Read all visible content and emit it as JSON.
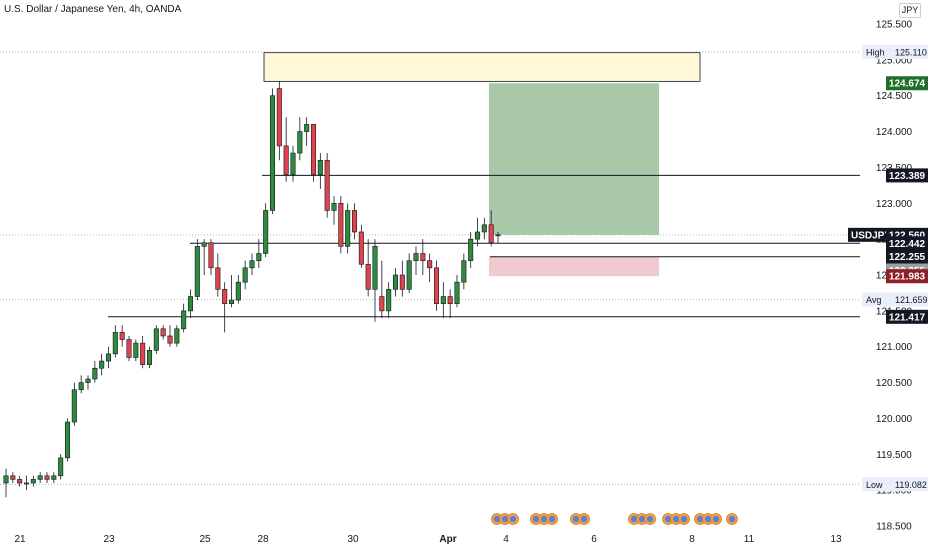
{
  "header": {
    "title": "U.S. Dollar / Japanese Yen, 4h, OANDA",
    "currency": "JPY"
  },
  "colors": {
    "up": "#2e8b3e",
    "down": "#e0434b",
    "supply_zone": "#fff8d6",
    "target_zone": "#a9c8a9",
    "stop_zone": "#efcbd0"
  },
  "chart_data": {
    "type": "candlestick",
    "title": "U.S. Dollar / Japanese Yen, 4h, OANDA",
    "symbol": "USDJPY",
    "ylim": [
      118.5,
      125.5
    ],
    "y_ticks": [
      "118.500",
      "119.000",
      "119.500",
      "120.000",
      "120.500",
      "121.000",
      "121.500",
      "122.000",
      "122.500",
      "123.000",
      "123.500",
      "124.000",
      "124.500",
      "125.000",
      "125.500"
    ],
    "x_ticks": [
      "21",
      "23",
      "25",
      "28",
      "30",
      "Apr",
      "4",
      "6",
      "8",
      "11",
      "13"
    ],
    "candles": [
      [
        119.1,
        119.3,
        118.9,
        119.2
      ],
      [
        119.2,
        119.25,
        119.1,
        119.15
      ],
      [
        119.15,
        119.2,
        119.05,
        119.1
      ],
      [
        119.1,
        119.2,
        119.0,
        119.1
      ],
      [
        119.1,
        119.2,
        119.05,
        119.15
      ],
      [
        119.15,
        119.25,
        119.1,
        119.2
      ],
      [
        119.2,
        119.25,
        119.1,
        119.15
      ],
      [
        119.15,
        119.25,
        119.1,
        119.2
      ],
      [
        119.2,
        119.5,
        119.15,
        119.45
      ],
      [
        119.45,
        120.0,
        119.4,
        119.95
      ],
      [
        119.95,
        120.5,
        119.9,
        120.4
      ],
      [
        120.4,
        120.6,
        120.35,
        120.5
      ],
      [
        120.5,
        120.6,
        120.4,
        120.55
      ],
      [
        120.55,
        120.8,
        120.5,
        120.7
      ],
      [
        120.7,
        120.9,
        120.6,
        120.8
      ],
      [
        120.8,
        121.0,
        120.7,
        120.9
      ],
      [
        120.9,
        121.3,
        120.85,
        121.2
      ],
      [
        121.2,
        121.3,
        121.0,
        121.1
      ],
      [
        121.1,
        121.15,
        120.8,
        120.85
      ],
      [
        120.85,
        121.1,
        120.8,
        121.05
      ],
      [
        121.05,
        121.15,
        120.7,
        120.75
      ],
      [
        120.75,
        121.0,
        120.7,
        120.95
      ],
      [
        120.95,
        121.3,
        120.9,
        121.25
      ],
      [
        121.25,
        121.3,
        121.1,
        121.15
      ],
      [
        121.15,
        121.3,
        121.0,
        121.05
      ],
      [
        121.05,
        121.3,
        121.0,
        121.25
      ],
      [
        121.25,
        121.6,
        121.2,
        121.5
      ],
      [
        121.5,
        121.8,
        121.4,
        121.7
      ],
      [
        121.7,
        122.5,
        121.65,
        122.4
      ],
      [
        122.4,
        122.5,
        122.0,
        122.45
      ],
      [
        122.45,
        122.5,
        122.0,
        122.1
      ],
      [
        122.1,
        122.3,
        121.7,
        121.8
      ],
      [
        121.8,
        121.9,
        121.2,
        121.6
      ],
      [
        121.6,
        122.0,
        121.55,
        121.65
      ],
      [
        121.65,
        122.0,
        121.6,
        121.9
      ],
      [
        121.9,
        122.2,
        121.8,
        122.1
      ],
      [
        122.1,
        122.3,
        122.0,
        122.2
      ],
      [
        122.2,
        122.5,
        122.1,
        122.3
      ],
      [
        122.3,
        123.0,
        122.25,
        122.9
      ],
      [
        122.9,
        124.6,
        122.85,
        124.5
      ],
      [
        124.6,
        124.7,
        123.6,
        123.8
      ],
      [
        123.8,
        124.2,
        123.3,
        123.4
      ],
      [
        123.4,
        123.8,
        123.3,
        123.7
      ],
      [
        123.7,
        124.2,
        123.6,
        124.0
      ],
      [
        124.0,
        124.2,
        123.8,
        124.1
      ],
      [
        124.1,
        124.1,
        123.3,
        123.4
      ],
      [
        123.4,
        123.7,
        123.2,
        123.6
      ],
      [
        123.6,
        123.7,
        122.8,
        122.9
      ],
      [
        122.9,
        123.1,
        122.7,
        123.0
      ],
      [
        123.0,
        123.1,
        122.3,
        122.4
      ],
      [
        122.4,
        123.0,
        122.3,
        122.9
      ],
      [
        122.9,
        123.0,
        122.5,
        122.6
      ],
      [
        122.6,
        122.7,
        122.1,
        122.15
      ],
      [
        122.15,
        122.5,
        121.7,
        121.8
      ],
      [
        121.8,
        122.5,
        121.35,
        122.4
      ],
      [
        121.7,
        122.2,
        121.4,
        121.5
      ],
      [
        121.5,
        121.9,
        121.4,
        121.8
      ],
      [
        121.8,
        122.1,
        121.7,
        122.0
      ],
      [
        122.0,
        122.2,
        121.7,
        121.8
      ],
      [
        121.8,
        122.3,
        121.75,
        122.2
      ],
      [
        122.2,
        122.4,
        122.0,
        122.3
      ],
      [
        122.3,
        122.5,
        122.0,
        122.2
      ],
      [
        122.2,
        122.3,
        121.9,
        122.1
      ],
      [
        122.1,
        122.2,
        121.5,
        121.6
      ],
      [
        121.6,
        121.9,
        121.4,
        121.7
      ],
      [
        121.7,
        121.8,
        121.4,
        121.6
      ],
      [
        121.6,
        122.0,
        121.55,
        121.9
      ],
      [
        121.9,
        122.3,
        121.8,
        122.2
      ],
      [
        122.2,
        122.6,
        122.1,
        122.5
      ],
      [
        122.5,
        122.8,
        122.4,
        122.6
      ],
      [
        122.6,
        122.8,
        122.5,
        122.7
      ],
      [
        122.7,
        122.9,
        122.4,
        122.45
      ],
      [
        122.56,
        122.6,
        122.45,
        122.56
      ]
    ],
    "levels": [
      {
        "name": "High",
        "value": 125.11
      },
      {
        "name": "Avg",
        "value": 121.659
      },
      {
        "name": "Low",
        "value": 119.082
      }
    ],
    "price_tags": [
      {
        "label": "",
        "value": "124.674",
        "price": 124.674,
        "bg": "#1f6f2a",
        "fg": "#ffffff"
      },
      {
        "label": "",
        "value": "123.389",
        "price": 123.389,
        "bg": "#131722",
        "fg": "#ffffff"
      },
      {
        "label": "USDJPY",
        "value": "122.560",
        "price": 122.56,
        "bg": "#131722",
        "fg": "#ffffff"
      },
      {
        "label": "",
        "value": "122.442",
        "price": 122.442,
        "bg": "#131722",
        "fg": "#ffffff"
      },
      {
        "label": "",
        "value": "122.255",
        "price": 122.255,
        "bg": "#131722",
        "fg": "#ffffff"
      },
      {
        "label": "",
        "value": "122.255",
        "price": 122.255,
        "bg": "#9b9ea6",
        "fg": "#ffffff"
      },
      {
        "label": "",
        "value": "121.983",
        "price": 121.983,
        "bg": "#8f1f24",
        "fg": "#ffffff"
      },
      {
        "label": "",
        "value": "121.417",
        "price": 121.417,
        "bg": "#131722",
        "fg": "#ffffff"
      }
    ],
    "horizontal_lines": [
      123.389,
      122.442,
      122.255,
      121.417
    ],
    "zones": [
      {
        "type": "supply",
        "top": 125.1,
        "bottom": 124.7
      },
      {
        "type": "target",
        "top": 124.674,
        "bottom": 122.56
      },
      {
        "type": "stop",
        "top": 122.255,
        "bottom": 121.983
      }
    ]
  }
}
